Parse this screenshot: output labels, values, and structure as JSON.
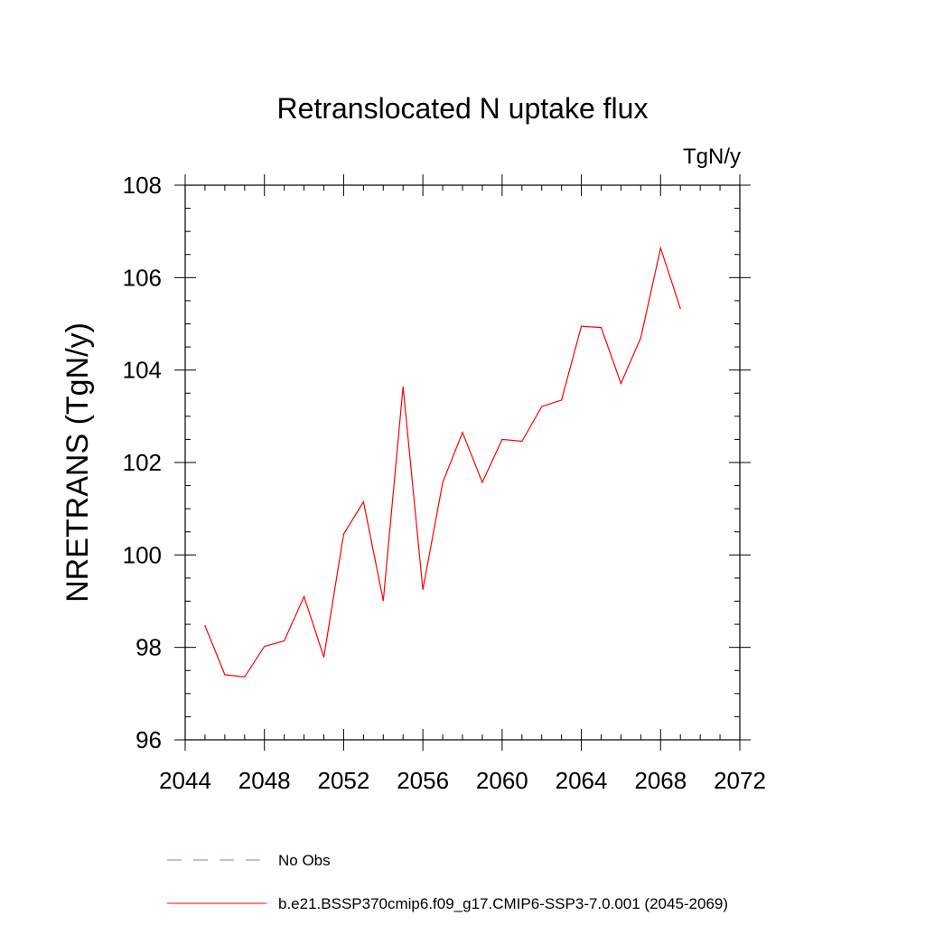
{
  "chart_data": {
    "type": "line",
    "title": "Retranslocated N uptake flux",
    "units": "TgN/y",
    "ylabel": "NRETRANS  (TgN/y)",
    "xlabel": "",
    "xlim": [
      2044,
      2072
    ],
    "ylim": [
      96,
      108
    ],
    "xticks": [
      2044,
      2048,
      2052,
      2056,
      2060,
      2064,
      2068,
      2072
    ],
    "yticks": [
      96,
      98,
      100,
      102,
      104,
      106,
      108
    ],
    "grid": false,
    "legend_position": "bottom",
    "series": [
      {
        "name": "b.e21.BSSP370cmip6.f09_g17.CMIP6-SSP3-7.0.001 (2045-2069)",
        "color": "#ff0000",
        "style": "solid",
        "x": [
          2045,
          2046,
          2047,
          2048,
          2049,
          2050,
          2051,
          2052,
          2053,
          2054,
          2055,
          2056,
          2057,
          2058,
          2059,
          2060,
          2061,
          2062,
          2063,
          2064,
          2065,
          2066,
          2067,
          2068,
          2069
        ],
        "y": [
          98.47,
          97.41,
          97.36,
          98.02,
          98.14,
          99.1,
          97.79,
          100.45,
          101.15,
          99.01,
          103.64,
          99.25,
          101.57,
          102.65,
          101.57,
          102.5,
          102.46,
          103.21,
          103.35,
          104.95,
          104.92,
          103.71,
          104.7,
          106.64,
          105.33
        ]
      }
    ],
    "legend": [
      {
        "label": "No Obs",
        "color": "#7f7fd6",
        "style": "dashed"
      },
      {
        "label": "b.e21.BSSP370cmip6.f09_g17.CMIP6-SSP3-7.0.001 (2045-2069)",
        "color": "#ff0000",
        "style": "solid"
      }
    ]
  }
}
